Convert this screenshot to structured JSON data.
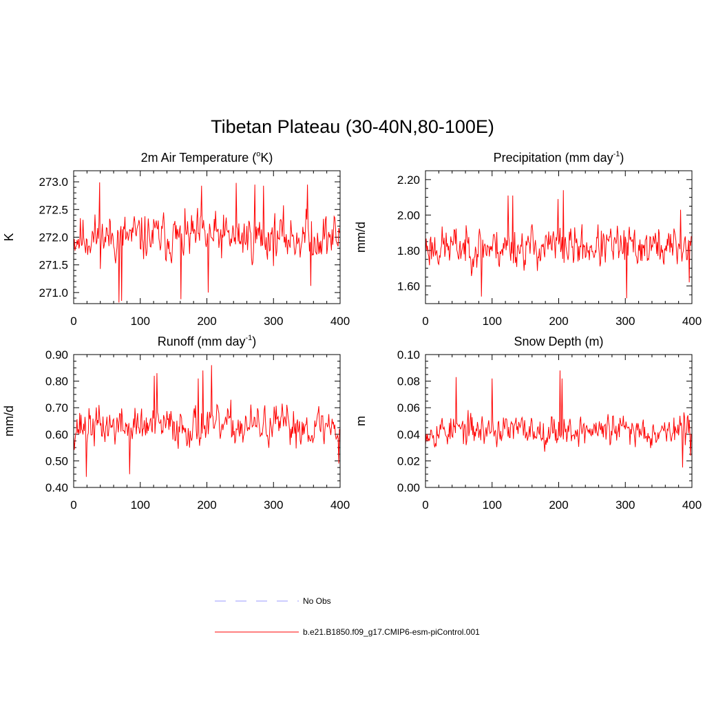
{
  "figure": {
    "title": "Tibetan Plateau (30-40N,80-100E)"
  },
  "legend": {
    "entries": [
      {
        "label": "No Obs",
        "style": "dashed",
        "color": "#9999ff"
      },
      {
        "label": "b.e21.B1850.f09_g17.CMIP6-esm-piControl.001",
        "style": "solid",
        "color": "#ff0000"
      }
    ]
  },
  "chart_data": [
    {
      "type": "line",
      "title_main": "2m Air Temperature (",
      "title_sup": "o",
      "title_end": "K)",
      "ylabel": "K",
      "xlim": [
        0,
        400
      ],
      "ylim": [
        270.8,
        273.2
      ],
      "xticks": [
        0,
        100,
        200,
        300,
        400
      ],
      "xtick_labels": [
        "0",
        "100",
        "200",
        "300",
        "400"
      ],
      "yticks": [
        271.0,
        271.5,
        272.0,
        272.5,
        273.0
      ],
      "ytick_labels": [
        "271.0",
        "271.5",
        "272.0",
        "272.5",
        "273.0"
      ],
      "minor_step": 0.1,
      "series": [
        {
          "color": "#ff0000",
          "mean": 272.0,
          "amp": 0.4,
          "min": 270.82,
          "max": 272.99,
          "seed": 11,
          "spikes": [
            [
              39,
              272.99
            ],
            [
              68,
              270.82
            ],
            [
              72,
              270.85
            ],
            [
              161,
              270.88
            ],
            [
              192,
              272.93
            ],
            [
              202,
              271.0
            ],
            [
              244,
              272.98
            ],
            [
              272,
              272.95
            ],
            [
              285,
              272.93
            ],
            [
              351,
              272.95
            ],
            [
              356,
              271.12
            ]
          ]
        }
      ]
    },
    {
      "type": "line",
      "title_main": "Precipitation (mm day",
      "title_sup": "-1",
      "title_end": ")",
      "ylabel": "mm/d",
      "xlim": [
        0,
        400
      ],
      "ylim": [
        1.5,
        2.25
      ],
      "xticks": [
        0,
        100,
        200,
        300,
        400
      ],
      "xtick_labels": [
        "0",
        "100",
        "200",
        "300",
        "400"
      ],
      "yticks": [
        1.6,
        1.8,
        2.0,
        2.2
      ],
      "ytick_labels": [
        "1.60",
        "1.80",
        "2.00",
        "2.20"
      ],
      "minor_step": 0.05,
      "series": [
        {
          "color": "#ff0000",
          "mean": 1.82,
          "amp": 0.11,
          "min": 1.53,
          "max": 2.14,
          "seed": 23,
          "spikes": [
            [
              84,
              1.54
            ],
            [
              124,
              2.11
            ],
            [
              131,
              2.11
            ],
            [
              199,
              2.09
            ],
            [
              207,
              2.14
            ],
            [
              302,
              1.53
            ],
            [
              383,
              2.03
            ],
            [
              396,
              1.62
            ]
          ]
        }
      ]
    },
    {
      "type": "line",
      "title_main": "Runoff (mm day",
      "title_sup": "-1",
      "title_end": ")",
      "ylabel": "mm/d",
      "xlim": [
        0,
        400
      ],
      "ylim": [
        0.4,
        0.9
      ],
      "xticks": [
        0,
        100,
        200,
        300,
        400
      ],
      "xtick_labels": [
        "0",
        "100",
        "200",
        "300",
        "400"
      ],
      "yticks": [
        0.4,
        0.5,
        0.6,
        0.7,
        0.8,
        0.9
      ],
      "ytick_labels": [
        "0.40",
        "0.50",
        "0.60",
        "0.70",
        "0.80",
        "0.90"
      ],
      "minor_step": 0.025,
      "series": [
        {
          "color": "#ff0000",
          "mean": 0.63,
          "amp": 0.07,
          "min": 0.44,
          "max": 0.86,
          "seed": 37,
          "spikes": [
            [
              19,
              0.44
            ],
            [
              84,
              0.45
            ],
            [
              121,
              0.82
            ],
            [
              125,
              0.83
            ],
            [
              187,
              0.81
            ],
            [
              194,
              0.84
            ],
            [
              207,
              0.86
            ],
            [
              398,
              0.49
            ]
          ]
        }
      ]
    },
    {
      "type": "line",
      "title_main": "Snow Depth (m)",
      "title_sup": "",
      "title_end": "",
      "ylabel": "m",
      "xlim": [
        0,
        400
      ],
      "ylim": [
        0.0,
        0.1
      ],
      "xticks": [
        0,
        100,
        200,
        300,
        400
      ],
      "xtick_labels": [
        "0",
        "100",
        "200",
        "300",
        "400"
      ],
      "yticks": [
        0.0,
        0.02,
        0.04,
        0.06,
        0.08,
        0.1
      ],
      "ytick_labels": [
        "0.00",
        "0.02",
        "0.04",
        "0.06",
        "0.08",
        "0.10"
      ],
      "minor_step": 0.005,
      "series": [
        {
          "color": "#ff0000",
          "mean": 0.043,
          "amp": 0.011,
          "min": 0.015,
          "max": 0.088,
          "seed": 53,
          "spikes": [
            [
              46,
              0.083
            ],
            [
              100,
              0.082
            ],
            [
              202,
              0.088
            ],
            [
              205,
              0.082
            ],
            [
              386,
              0.015
            ],
            [
              398,
              0.024
            ]
          ]
        }
      ]
    }
  ]
}
